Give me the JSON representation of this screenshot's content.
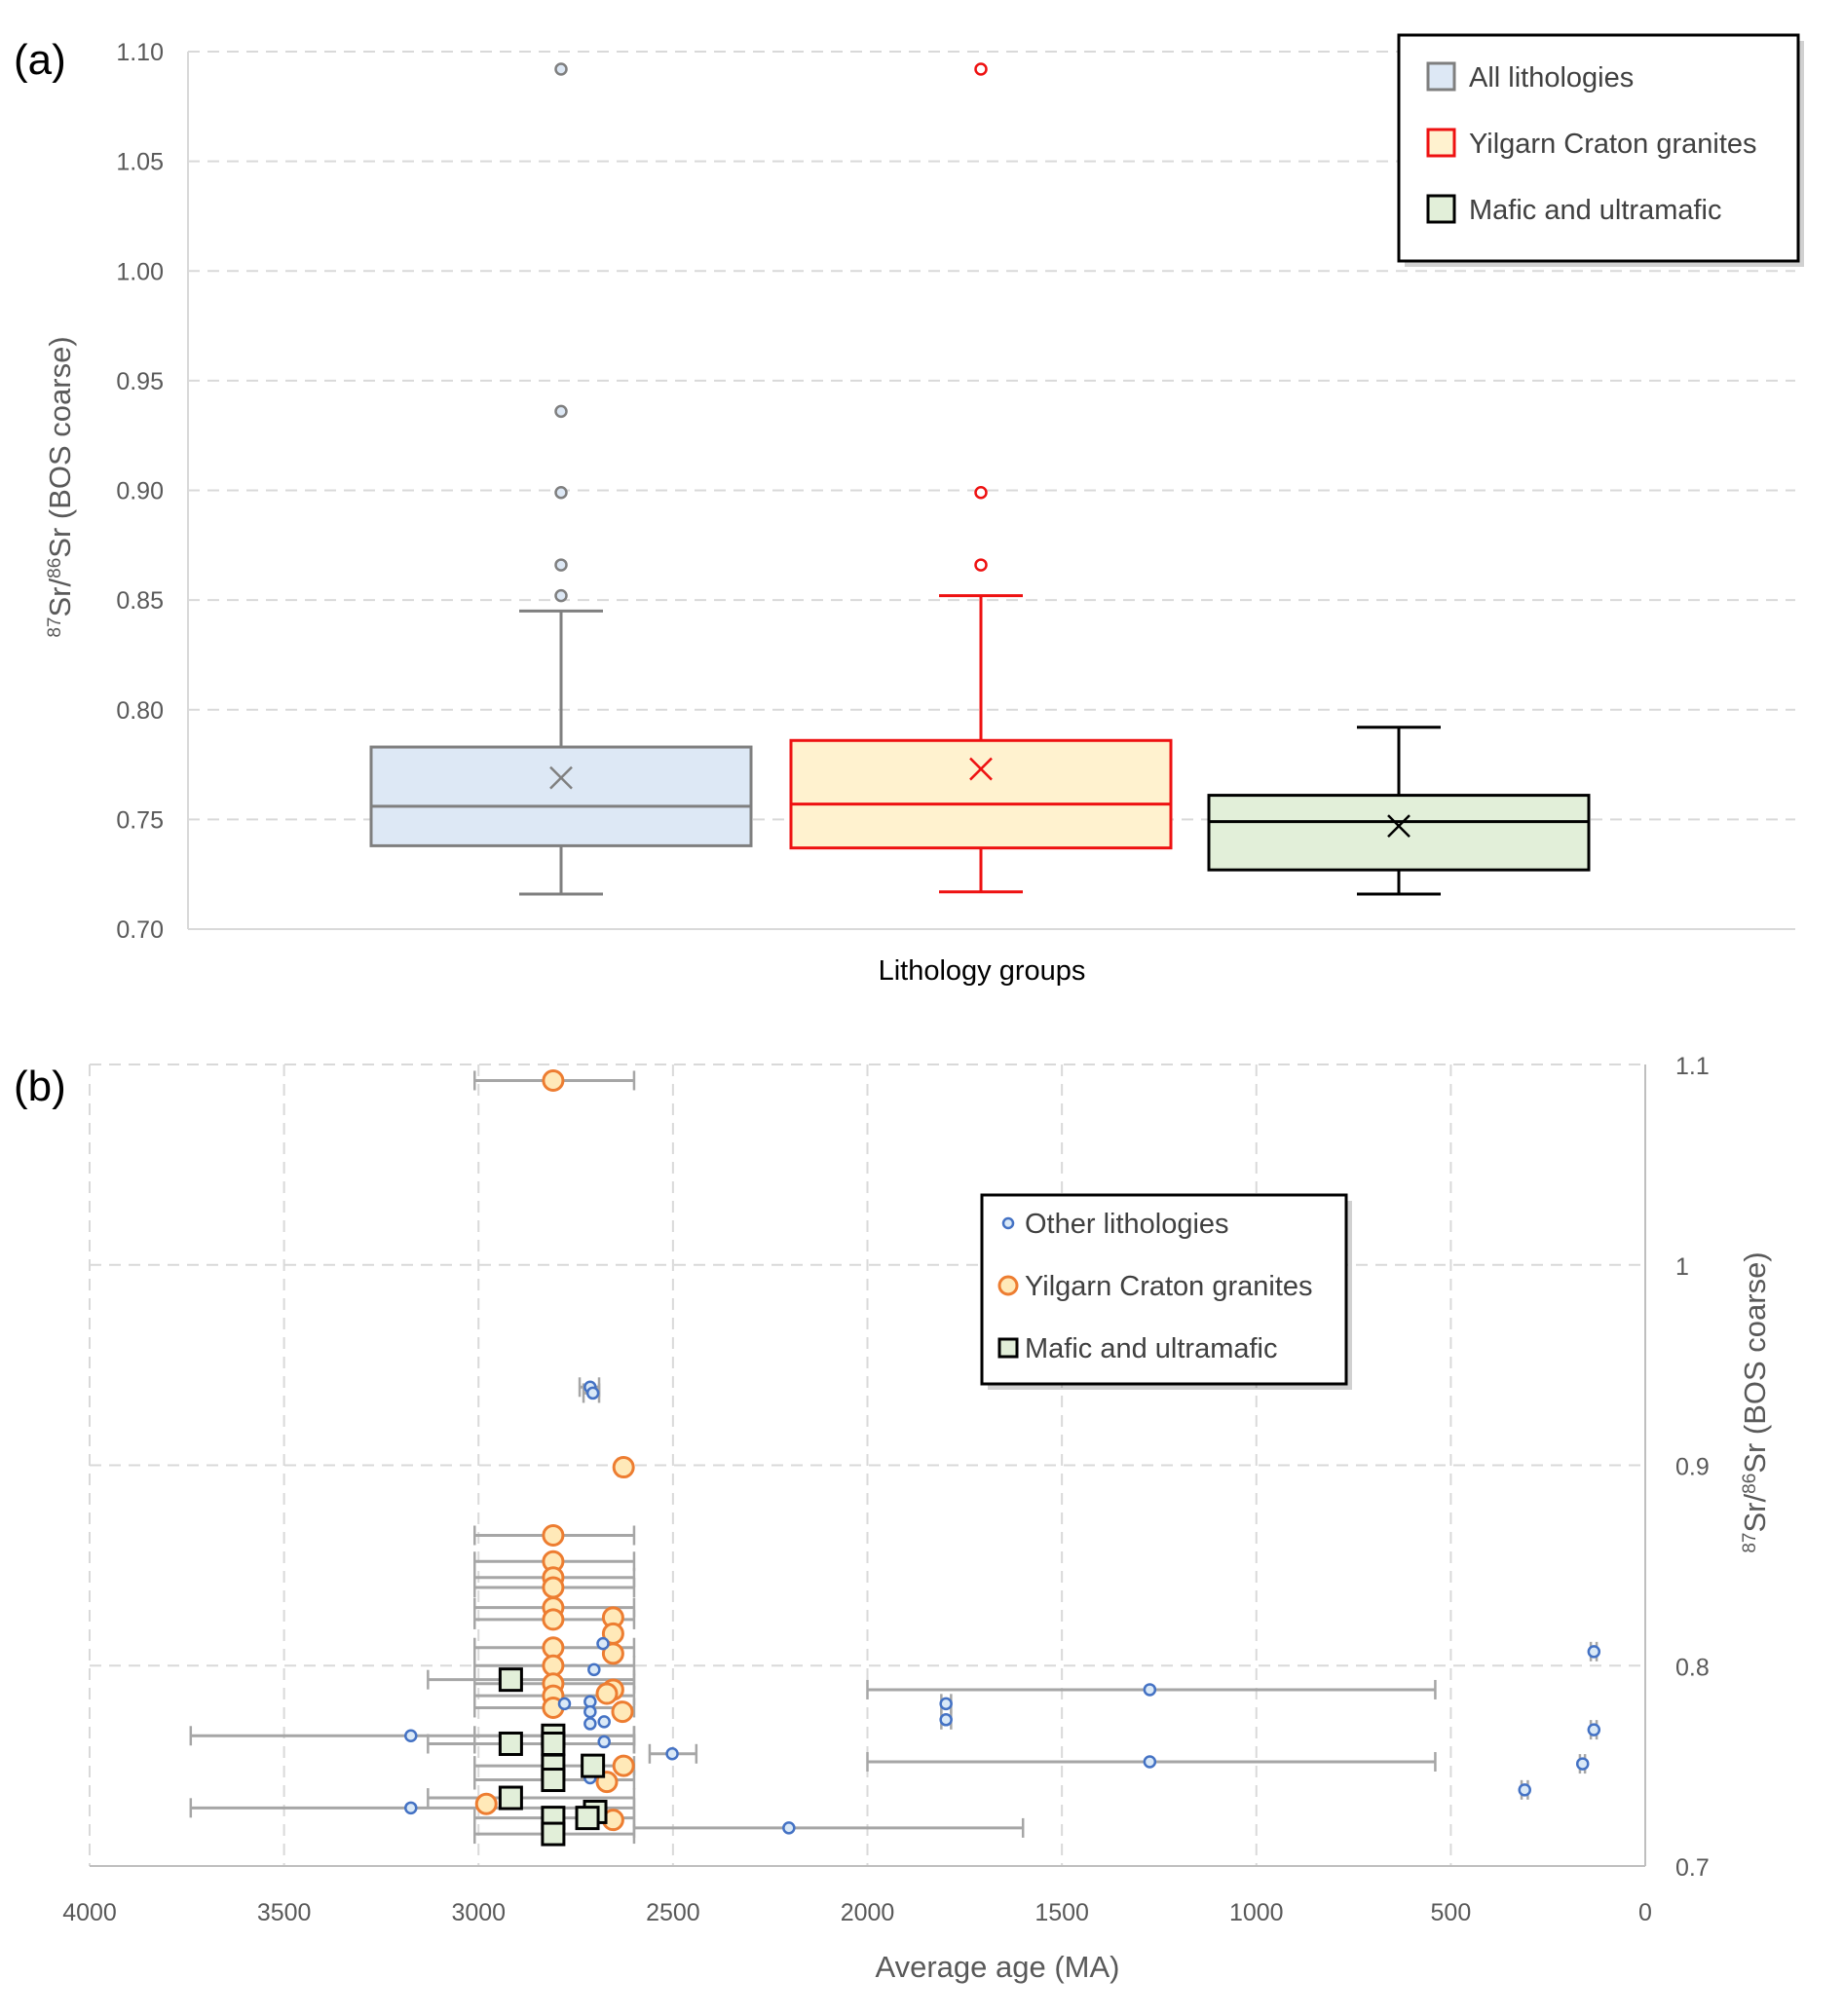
{
  "chart_data": [
    {
      "panel": "(a)",
      "type": "box",
      "title": "",
      "xlabel": "Lithology groups",
      "ylabel_sup1": "87",
      "ylabel_mid1": "Sr/",
      "ylabel_sup2": "86",
      "ylabel_rest": "Sr (BOS coarse)",
      "ylim": [
        0.7,
        1.1
      ],
      "yticks": [
        0.7,
        0.75,
        0.8,
        0.85,
        0.9,
        0.95,
        1.0,
        1.05,
        1.1
      ],
      "ytick_labels": [
        "0.70",
        "0.75",
        "0.80",
        "0.85",
        "0.90",
        "0.95",
        "1.00",
        "1.05",
        "1.10"
      ],
      "grid": "horizontal-dashed",
      "legend_position": "top-right",
      "series": [
        {
          "name": "All lithologies",
          "stroke": "#7f7f7f",
          "fill": "#dde8f5",
          "whisker_low": 0.716,
          "q1": 0.738,
          "median": 0.756,
          "q3": 0.783,
          "whisker_high": 0.845,
          "mean": 0.769,
          "outliers": [
            0.852,
            0.866,
            0.899,
            0.936,
            1.092
          ]
        },
        {
          "name": "Yilgarn Craton granites",
          "stroke": "#ee1111",
          "fill": "#fff2cf",
          "whisker_low": 0.717,
          "q1": 0.737,
          "median": 0.757,
          "q3": 0.786,
          "whisker_high": 0.852,
          "mean": 0.773,
          "outliers": [
            0.866,
            0.899,
            1.092
          ]
        },
        {
          "name": "Mafic and ultramafic",
          "stroke": "#000000",
          "fill": "#e2efd9",
          "whisker_low": 0.716,
          "q1": 0.727,
          "median": 0.749,
          "q3": 0.761,
          "whisker_high": 0.792,
          "mean": 0.747,
          "outliers": []
        }
      ]
    },
    {
      "panel": "(b)",
      "type": "scatter",
      "title": "",
      "xlabel": "Average age (MA)",
      "ylabel_sup1": "87",
      "ylabel_mid1": "Sr/",
      "ylabel_sup2": "86",
      "ylabel_rest": "Sr (BOS coarse)",
      "x_reversed": true,
      "xlim": [
        4000,
        0
      ],
      "ylim": [
        0.7,
        1.1
      ],
      "xticks": [
        4000,
        3500,
        3000,
        2500,
        2000,
        1500,
        1000,
        500,
        0
      ],
      "xtick_labels": [
        "4000",
        "3500",
        "3000",
        "2500",
        "2000",
        "1500",
        "1000",
        "500",
        "0"
      ],
      "yticks": [
        0.7,
        0.8,
        0.9,
        1.0,
        1.1
      ],
      "ytick_labels": [
        "0.7",
        "0.8",
        "0.9",
        "1",
        "1.1"
      ],
      "yaxis_side": "right",
      "grid": "both-dashed",
      "legend_position": "top-center-right",
      "series": [
        {
          "name": "Other lithologies",
          "marker": "small-circle",
          "stroke": "#4472c4",
          "fill": "#dae9f7",
          "points": [
            {
              "x": 2713,
              "y": 0.939,
              "xmin": 2740,
              "xmax": 2690
            },
            {
              "x": 2706,
              "y": 0.936,
              "xmin": 2730,
              "xmax": 2690
            },
            {
              "x": 2680,
              "y": 0.811
            },
            {
              "x": 2703,
              "y": 0.798
            },
            {
              "x": 2779,
              "y": 0.781
            },
            {
              "x": 2713,
              "y": 0.782
            },
            {
              "x": 2713,
              "y": 0.777
            },
            {
              "x": 2713,
              "y": 0.771
            },
            {
              "x": 2677,
              "y": 0.772
            },
            {
              "x": 2677,
              "y": 0.762
            },
            {
              "x": 2713,
              "y": 0.744
            },
            {
              "x": 3174,
              "y": 0.765,
              "xmin": 3740,
              "xmax": 2600
            },
            {
              "x": 3174,
              "y": 0.729,
              "xmin": 3740,
              "xmax": 2600
            },
            {
              "x": 2502,
              "y": 0.756,
              "xmin": 2560,
              "xmax": 2440
            },
            {
              "x": 2202,
              "y": 0.719,
              "xmin": 2600,
              "xmax": 1600
            },
            {
              "x": 1274,
              "y": 0.788,
              "xmin": 2000,
              "xmax": 540
            },
            {
              "x": 1274,
              "y": 0.752,
              "xmin": 2000,
              "xmax": 540
            },
            {
              "x": 1798,
              "y": 0.781,
              "xmin": 1810,
              "xmax": 1785
            },
            {
              "x": 1798,
              "y": 0.773,
              "xmin": 1810,
              "xmax": 1785
            },
            {
              "x": 132,
              "y": 0.807,
              "xmin": 140,
              "xmax": 125
            },
            {
              "x": 132,
              "y": 0.768,
              "xmin": 140,
              "xmax": 125
            },
            {
              "x": 161,
              "y": 0.751,
              "xmin": 168,
              "xmax": 155
            },
            {
              "x": 310,
              "y": 0.738,
              "xmin": 318,
              "xmax": 302
            }
          ]
        },
        {
          "name": "Yilgarn Craton granites",
          "marker": "circle",
          "stroke": "#ed7d31",
          "fill": "#ffe9b8",
          "points": [
            {
              "x": 2808,
              "y": 1.092,
              "xmin": 3010,
              "xmax": 2600
            },
            {
              "x": 2627,
              "y": 0.899,
              "xmin": 2640,
              "xmax": 2615
            },
            {
              "x": 2808,
              "y": 0.865,
              "xmin": 3010,
              "xmax": 2600
            },
            {
              "x": 2808,
              "y": 0.852,
              "xmin": 3010,
              "xmax": 2600
            },
            {
              "x": 2808,
              "y": 0.844,
              "xmin": 3010,
              "xmax": 2600
            },
            {
              "x": 2808,
              "y": 0.839,
              "xmin": 3010,
              "xmax": 2600
            },
            {
              "x": 2808,
              "y": 0.829,
              "xmin": 3010,
              "xmax": 2600
            },
            {
              "x": 2808,
              "y": 0.823,
              "xmin": 3010,
              "xmax": 2600
            },
            {
              "x": 2808,
              "y": 0.809,
              "xmin": 3010,
              "xmax": 2600
            },
            {
              "x": 2808,
              "y": 0.8,
              "xmin": 3010,
              "xmax": 2600
            },
            {
              "x": 2808,
              "y": 0.791,
              "xmin": 3010,
              "xmax": 2600
            },
            {
              "x": 2808,
              "y": 0.785,
              "xmin": 3010,
              "xmax": 2600
            },
            {
              "x": 2808,
              "y": 0.779,
              "xmin": 3010,
              "xmax": 2600
            },
            {
              "x": 2654,
              "y": 0.824
            },
            {
              "x": 2654,
              "y": 0.816
            },
            {
              "x": 2654,
              "y": 0.806
            },
            {
              "x": 2654,
              "y": 0.788
            },
            {
              "x": 2670,
              "y": 0.786
            },
            {
              "x": 2630,
              "y": 0.777
            },
            {
              "x": 2627,
              "y": 0.75
            },
            {
              "x": 2670,
              "y": 0.742
            },
            {
              "x": 2654,
              "y": 0.723
            },
            {
              "x": 2980,
              "y": 0.731
            }
          ]
        },
        {
          "name": "Mafic and ultramafic",
          "marker": "square",
          "stroke": "#000000",
          "fill": "#e2efd9",
          "points": [
            {
              "x": 2917,
              "y": 0.793,
              "xmin": 3130,
              "xmax": 2600
            },
            {
              "x": 2917,
              "y": 0.761,
              "xmin": 3130,
              "xmax": 2600
            },
            {
              "x": 2917,
              "y": 0.734,
              "xmin": 3130,
              "xmax": 2600
            },
            {
              "x": 2808,
              "y": 0.765,
              "xmin": 3010,
              "xmax": 2600
            },
            {
              "x": 2808,
              "y": 0.761,
              "xmin": 3010,
              "xmax": 2600
            },
            {
              "x": 2808,
              "y": 0.75,
              "xmin": 3010,
              "xmax": 2600
            },
            {
              "x": 2808,
              "y": 0.743,
              "xmin": 3010,
              "xmax": 2600
            },
            {
              "x": 2808,
              "y": 0.724,
              "xmin": 3010,
              "xmax": 2600
            },
            {
              "x": 2808,
              "y": 0.716,
              "xmin": 3010,
              "xmax": 2600
            },
            {
              "x": 2706,
              "y": 0.75
            },
            {
              "x": 2700,
              "y": 0.727
            },
            {
              "x": 2720,
              "y": 0.724
            }
          ]
        }
      ]
    }
  ]
}
